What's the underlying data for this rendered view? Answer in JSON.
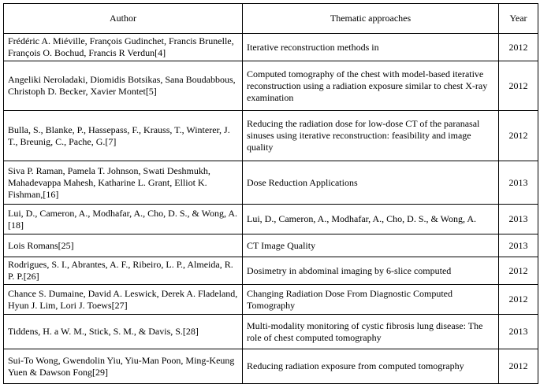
{
  "table": {
    "headers": [
      "Author",
      "Thematic approaches",
      "Year"
    ],
    "rows": [
      {
        "author": "Frédéric A. Miéville, François Gudinchet,   Francis Brunelle, François O. Bochud, Francis R Verdun[4]",
        "theme": "Iterative reconstruction methods in",
        "year": "2012"
      },
      {
        "author": "Angeliki Neroladaki, Diomidis Botsikas, Sana Boudabbous, Christoph D. Becker, Xavier Montet[5]",
        "theme": "Computed tomography of the chest with model-based iterative reconstruction using a radiation exposure similar to chest X-ray examination",
        "year": "2012"
      },
      {
        "author": "Bulla, S., Blanke, P., Hassepass, F., Krauss, T., Winterer, J. T., Breunig, C., Pache, G.[7]",
        "theme": "Reducing the radiation dose for low-dose CT of the paranasal sinuses using iterative reconstruction: feasibility and image quality",
        "year": "2012"
      },
      {
        "author": "Siva P. Raman,  Pamela T. Johnson, Swati Deshmukh, Mahadevappa Mahesh, Katharine L. Grant, Elliot K. Fishman,[16]",
        "theme": "Dose Reduction Applications",
        "year": "2013"
      },
      {
        "author": "Lui, D., Cameron, A., Modhafar, A., Cho, D. S., & Wong, A.[18]",
        "theme": "Lui, D., Cameron, A., Modhafar, A., Cho, D. S., & Wong, A.",
        "year": "2013"
      },
      {
        "author": "Lois Romans[25]",
        "theme": "CT Image Quality",
        "year": "2013"
      },
      {
        "author": "Rodrigues, S. I., Abrantes, A. F., Ribeiro, L. P., Almeida, R. P. P.[26]",
        "theme": "Dosimetry in abdominal imaging by 6-slice computed",
        "year": "2012"
      },
      {
        "author": "Chance S. Dumaine, David A. Leswick,   Derek A. Fladeland, Hyun J. Lim,   Lori J. Toews[27]",
        "theme": "Changing Radiation Dose From Diagnostic Computed Tomography",
        "year": "2012"
      },
      {
        "author": "Tiddens, H. a W. M., Stick, S. M., & Davis, S.[28]",
        "theme": "Multi-modality monitoring of cystic fibrosis lung disease: The role of chest computed tomography",
        "year": "2013"
      },
      {
        "author": "Sui-To Wong, Gwendolin Yiu, Yiu-Man Poon, Ming-Keung Yuen & Dawson Fong[29]",
        "theme": "Reducing radiation exposure from computed tomography",
        "year": "2012"
      }
    ]
  }
}
